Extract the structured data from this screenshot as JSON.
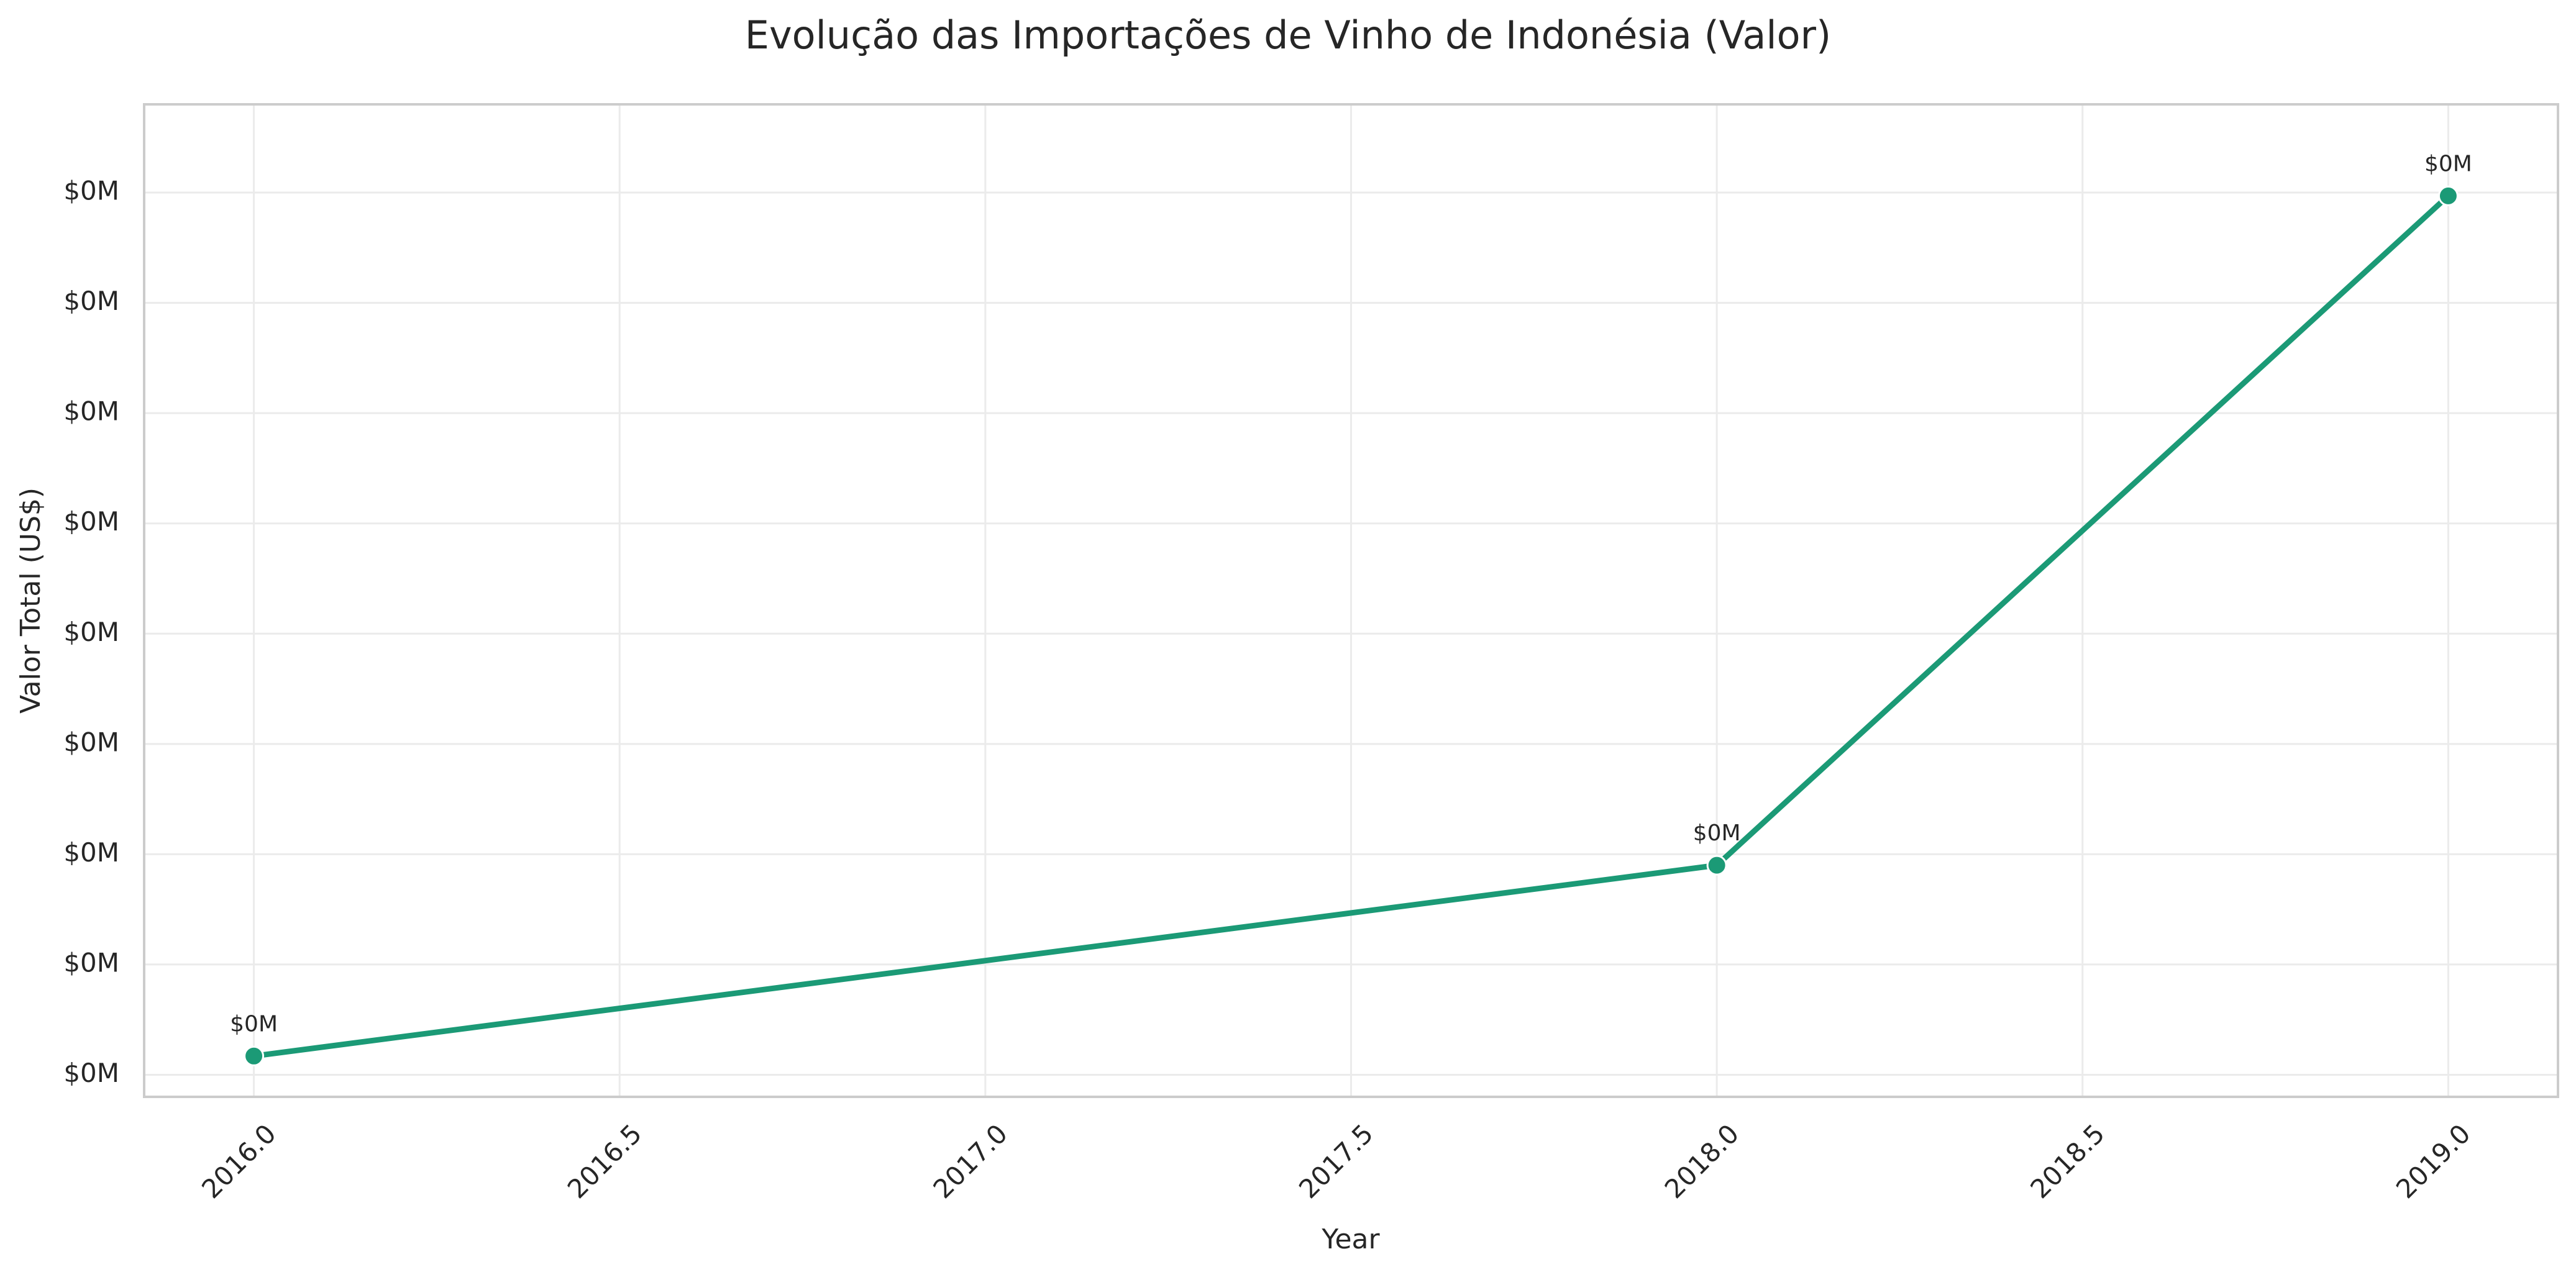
{
  "chart_data": {
    "type": "line",
    "title": "Evolução das Importações de Vinho de Indonésia (Valor)",
    "xlabel": "Year",
    "ylabel": "Valor Total (US$)",
    "xlim": [
      2015.85,
      2019.15
    ],
    "ylim": [
      0,
      9
    ],
    "x_ticks": [
      2016.0,
      2016.5,
      2017.0,
      2017.5,
      2018.0,
      2018.5,
      2019.0
    ],
    "x_tick_labels": [
      "2016.0",
      "2016.5",
      "2017.0",
      "2017.5",
      "2018.0",
      "2018.5",
      "2019.0"
    ],
    "y_ticks": [
      0.2,
      1.2,
      2.2,
      3.2,
      4.2,
      5.2,
      6.2,
      7.2,
      8.2
    ],
    "y_tick_labels": [
      "$0M",
      "$0M",
      "$0M",
      "$0M",
      "$0M",
      "$0M",
      "$0M",
      "$0M",
      "$0M"
    ],
    "series": [
      {
        "x": [
          2016,
          2018,
          2019
        ],
        "y": [
          0.37,
          2.1,
          8.17
        ],
        "labels": [
          "$0M",
          "$0M",
          "$0M"
        ]
      }
    ],
    "grid": true,
    "line_color": "#1b9a76",
    "marker_edge_color": "#ffffff",
    "grid_color": "#ebebeb",
    "frame_color": "#cccccc",
    "text_color": "#262626"
  }
}
